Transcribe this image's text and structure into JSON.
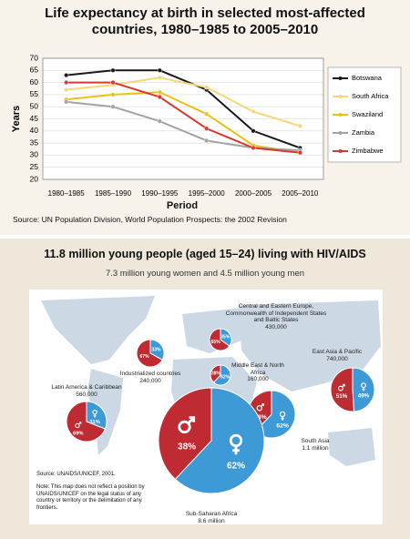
{
  "chart_data": [
    {
      "type": "line",
      "title": "Life expectancy at birth in selected most-affected countries, 1980–1985 to 2005–2010",
      "ylabel": "Years",
      "xlabel": "Period",
      "source": "Source: UN Population Division, World Population Prospects: the 2002 Revision",
      "categories": [
        "1980–1985",
        "1985–1990",
        "1990–1995",
        "1995–2000",
        "2000–2005",
        "2005–2010"
      ],
      "series": [
        {
          "name": "Botswana",
          "color": "#1a1a1a",
          "values": [
            63,
            65,
            65,
            57,
            40,
            33
          ]
        },
        {
          "name": "South Africa",
          "color": "#f5d77a",
          "values": [
            57,
            59,
            62,
            58,
            48,
            42
          ]
        },
        {
          "name": "Swaziland",
          "color": "#e8c21a",
          "values": [
            53,
            55,
            56,
            47,
            34,
            31
          ]
        },
        {
          "name": "Zambia",
          "color": "#a3a3a3",
          "values": [
            52,
            50,
            44,
            36,
            33,
            32
          ]
        },
        {
          "name": "Zimbabwe",
          "color": "#d43a2f",
          "values": [
            60,
            60,
            54,
            41,
            33,
            31
          ]
        }
      ],
      "ylim": [
        20,
        70
      ],
      "yticks": [
        20,
        25,
        30,
        35,
        40,
        45,
        50,
        55,
        60,
        65,
        70
      ],
      "grid": true,
      "legend": "right"
    },
    {
      "type": "pie",
      "title": "11.8 million young people (aged 15–24) living with HIV/AIDS",
      "subtitle": "7.3 million young women and 4.5 million young men",
      "source": "Source: UNAIDS/UNICEF, 2001.",
      "note": "Note: This map does not reflect a position by UNAIDS/UNICEF on the legal status of any country or territory or the delimitation of any frontiers.",
      "colors": [
        "#3e9ad6",
        "#bf2b33"
      ],
      "regions": [
        {
          "name": "Latin America & Caribbean",
          "total": "560,000",
          "values": [
            31,
            69
          ],
          "value_labels": [
            "31%",
            "69%"
          ]
        },
        {
          "name": "Industrialized countries",
          "total": "240,000",
          "values": [
            33,
            67
          ],
          "value_labels": [
            "33%",
            "67%"
          ]
        },
        {
          "name": "Central and Eastern Europe, Commonwealth of Independent States and Baltic States",
          "total": "430,000",
          "values": [
            35,
            65
          ],
          "value_labels": [
            "35%",
            "65%"
          ]
        },
        {
          "name": "Middle East & North Africa",
          "total": "160,000",
          "values": [
            62,
            38
          ],
          "value_labels": [
            "62%",
            "38%"
          ]
        },
        {
          "name": "East Asia & Pacific",
          "total": "740,000",
          "values": [
            49,
            51
          ],
          "value_labels": [
            "49%",
            "51%"
          ]
        },
        {
          "name": "South Asia",
          "total": "1.1 million",
          "values": [
            62,
            38
          ],
          "value_labels": [
            "62%",
            "38%"
          ]
        },
        {
          "name": "Sub-Saharan Africa",
          "total": "8.6 million",
          "values": [
            62,
            38
          ],
          "value_labels": [
            "62%",
            "38%"
          ]
        }
      ]
    }
  ]
}
